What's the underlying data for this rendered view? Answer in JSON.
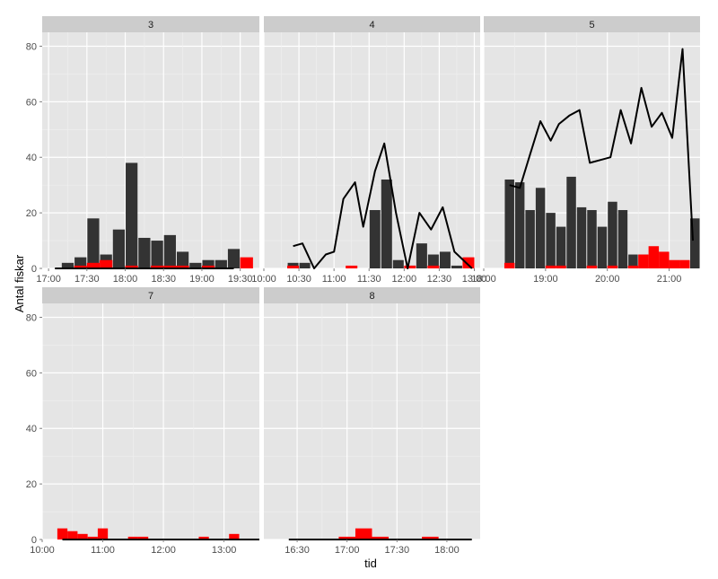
{
  "chart_data": {
    "type": "bar",
    "xlabel": "tid",
    "ylabel": "Antal fiskar",
    "ylim": [
      0,
      85
    ],
    "y_ticks": [
      0,
      20,
      40,
      60,
      80
    ],
    "grid": true,
    "colors": {
      "panel_bg": "#e5e5e5",
      "strip_bg": "#cccccc",
      "grid_major": "#ffffff",
      "grid_minor": "#f0f0f0",
      "dark_bar": "#333333",
      "red_bar": "#ff0000",
      "line": "#000000"
    },
    "panels": [
      {
        "label": "3",
        "xlim": [
          "16:55",
          "19:45"
        ],
        "x_ticks": [
          "17:00",
          "17:30",
          "18:00",
          "18:30",
          "19:00",
          "19:30"
        ],
        "bin_minutes": 10,
        "dark_bars": [
          {
            "start": "17:10",
            "value": 2
          },
          {
            "start": "17:20",
            "value": 4
          },
          {
            "start": "17:30",
            "value": 18
          },
          {
            "start": "17:40",
            "value": 5
          },
          {
            "start": "17:50",
            "value": 14
          },
          {
            "start": "18:00",
            "value": 38
          },
          {
            "start": "18:10",
            "value": 11
          },
          {
            "start": "18:20",
            "value": 10
          },
          {
            "start": "18:30",
            "value": 12
          },
          {
            "start": "18:40",
            "value": 6
          },
          {
            "start": "18:50",
            "value": 2
          },
          {
            "start": "19:00",
            "value": 3
          },
          {
            "start": "19:10",
            "value": 3
          },
          {
            "start": "19:20",
            "value": 7
          }
        ],
        "red_bars": [
          {
            "start": "17:20",
            "value": 1
          },
          {
            "start": "17:30",
            "value": 2
          },
          {
            "start": "17:40",
            "value": 3
          },
          {
            "start": "18:00",
            "value": 1
          },
          {
            "start": "18:20",
            "value": 1
          },
          {
            "start": "18:30",
            "value": 1
          },
          {
            "start": "18:40",
            "value": 1
          },
          {
            "start": "19:00",
            "value": 1
          },
          {
            "start": "19:30",
            "value": 4
          }
        ],
        "line": [
          {
            "x": "17:05",
            "y": 0
          },
          {
            "x": "19:25",
            "y": 0
          }
        ]
      },
      {
        "label": "4",
        "xlim": [
          "10:00",
          "13:05"
        ],
        "x_ticks": [
          "10:00",
          "10:30",
          "11:00",
          "11:30",
          "12:00",
          "12:30",
          "13:00"
        ],
        "bin_minutes": 10,
        "dark_bars": [
          {
            "start": "10:20",
            "value": 2
          },
          {
            "start": "10:30",
            "value": 2
          },
          {
            "start": "11:30",
            "value": 21
          },
          {
            "start": "11:40",
            "value": 32
          },
          {
            "start": "11:50",
            "value": 3
          },
          {
            "start": "12:00",
            "value": 1
          },
          {
            "start": "12:10",
            "value": 9
          },
          {
            "start": "12:20",
            "value": 5
          },
          {
            "start": "12:30",
            "value": 6
          },
          {
            "start": "12:40",
            "value": 1
          }
        ],
        "red_bars": [
          {
            "start": "10:20",
            "value": 1
          },
          {
            "start": "11:10",
            "value": 1
          },
          {
            "start": "12:00",
            "value": 1
          },
          {
            "start": "12:20",
            "value": 1
          },
          {
            "start": "12:50",
            "value": 4
          }
        ],
        "line": [
          {
            "x": "10:25",
            "y": 8
          },
          {
            "x": "10:33",
            "y": 9
          },
          {
            "x": "10:43",
            "y": 0
          },
          {
            "x": "10:53",
            "y": 5
          },
          {
            "x": "11:00",
            "y": 6
          },
          {
            "x": "11:08",
            "y": 25
          },
          {
            "x": "11:18",
            "y": 31
          },
          {
            "x": "11:25",
            "y": 15
          },
          {
            "x": "11:35",
            "y": 35
          },
          {
            "x": "11:43",
            "y": 45
          },
          {
            "x": "11:53",
            "y": 20
          },
          {
            "x": "12:03",
            "y": 0
          },
          {
            "x": "12:13",
            "y": 20
          },
          {
            "x": "12:23",
            "y": 14
          },
          {
            "x": "12:33",
            "y": 22
          },
          {
            "x": "12:43",
            "y": 6
          },
          {
            "x": "12:58",
            "y": 0
          }
        ]
      },
      {
        "label": "5",
        "xlim": [
          "18:00",
          "21:30"
        ],
        "x_ticks": [
          "18:00",
          "19:00",
          "20:00",
          "21:00"
        ],
        "bin_minutes": 10,
        "dark_bars": [
          {
            "start": "18:20",
            "value": 32
          },
          {
            "start": "18:30",
            "value": 31
          },
          {
            "start": "18:40",
            "value": 21
          },
          {
            "start": "18:50",
            "value": 29
          },
          {
            "start": "19:00",
            "value": 20
          },
          {
            "start": "19:10",
            "value": 15
          },
          {
            "start": "19:20",
            "value": 33
          },
          {
            "start": "19:30",
            "value": 22
          },
          {
            "start": "19:40",
            "value": 21
          },
          {
            "start": "19:50",
            "value": 15
          },
          {
            "start": "20:00",
            "value": 24
          },
          {
            "start": "20:10",
            "value": 21
          },
          {
            "start": "20:20",
            "value": 5
          },
          {
            "start": "20:30",
            "value": 5
          },
          {
            "start": "20:40",
            "value": 2
          },
          {
            "start": "20:50",
            "value": 1
          },
          {
            "start": "21:00",
            "value": 1
          },
          {
            "start": "21:10",
            "value": 1
          },
          {
            "start": "21:20",
            "value": 18
          }
        ],
        "red_bars": [
          {
            "start": "18:20",
            "value": 2
          },
          {
            "start": "19:00",
            "value": 1
          },
          {
            "start": "19:10",
            "value": 1
          },
          {
            "start": "19:40",
            "value": 1
          },
          {
            "start": "20:00",
            "value": 1
          },
          {
            "start": "20:20",
            "value": 1
          },
          {
            "start": "20:30",
            "value": 5
          },
          {
            "start": "20:40",
            "value": 8
          },
          {
            "start": "20:50",
            "value": 6
          },
          {
            "start": "21:00",
            "value": 3
          },
          {
            "start": "21:10",
            "value": 3
          }
        ],
        "line": [
          {
            "x": "18:25",
            "y": 30
          },
          {
            "x": "18:35",
            "y": 29
          },
          {
            "x": "18:45",
            "y": 41
          },
          {
            "x": "18:55",
            "y": 53
          },
          {
            "x": "19:05",
            "y": 46
          },
          {
            "x": "19:13",
            "y": 52
          },
          {
            "x": "19:23",
            "y": 55
          },
          {
            "x": "19:33",
            "y": 57
          },
          {
            "x": "19:43",
            "y": 38
          },
          {
            "x": "19:53",
            "y": 39
          },
          {
            "x": "20:03",
            "y": 40
          },
          {
            "x": "20:13",
            "y": 57
          },
          {
            "x": "20:23",
            "y": 45
          },
          {
            "x": "20:33",
            "y": 65
          },
          {
            "x": "20:43",
            "y": 51
          },
          {
            "x": "20:53",
            "y": 56
          },
          {
            "x": "21:03",
            "y": 47
          },
          {
            "x": "21:13",
            "y": 79
          },
          {
            "x": "21:23",
            "y": 10
          }
        ]
      },
      {
        "label": "7",
        "xlim": [
          "10:00",
          "13:35"
        ],
        "x_ticks": [
          "10:00",
          "11:00",
          "12:00",
          "13:00"
        ],
        "bin_minutes": 10,
        "dark_bars": [],
        "red_bars": [
          {
            "start": "10:15",
            "value": 4
          },
          {
            "start": "10:25",
            "value": 3
          },
          {
            "start": "10:35",
            "value": 2
          },
          {
            "start": "10:45",
            "value": 1
          },
          {
            "start": "10:55",
            "value": 4
          },
          {
            "start": "11:25",
            "value": 1
          },
          {
            "start": "11:35",
            "value": 1
          },
          {
            "start": "12:35",
            "value": 1
          },
          {
            "start": "13:05",
            "value": 2
          }
        ],
        "line": [
          {
            "x": "10:20",
            "y": 0
          },
          {
            "x": "13:35",
            "y": 0
          }
        ]
      },
      {
        "label": "8",
        "xlim": [
          "16:10",
          "18:20"
        ],
        "x_ticks": [
          "16:30",
          "17:00",
          "17:30",
          "18:00"
        ],
        "bin_minutes": 10,
        "dark_bars": [],
        "red_bars": [
          {
            "start": "16:55",
            "value": 1
          },
          {
            "start": "17:05",
            "value": 4
          },
          {
            "start": "17:15",
            "value": 1
          },
          {
            "start": "17:45",
            "value": 1
          }
        ],
        "line": [
          {
            "x": "16:25",
            "y": 0
          },
          {
            "x": "18:15",
            "y": 0
          }
        ]
      }
    ]
  }
}
